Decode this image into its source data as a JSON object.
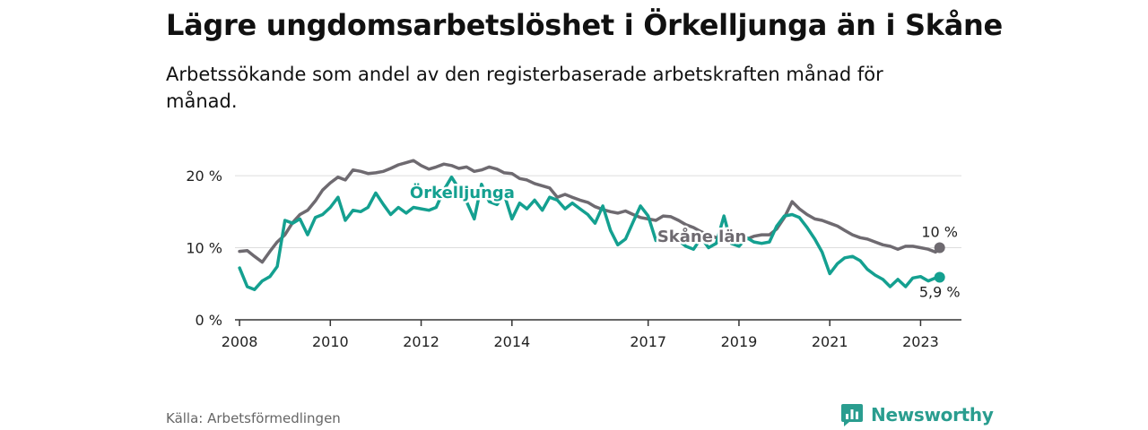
{
  "header": {
    "title": "Lägre ungdomsarbetslöshet i Örkelljunga än i Skåne",
    "subtitle": "Arbetssökande som andel av den registerbaserade arbetskraften månad för månad."
  },
  "footer": {
    "source": "Källa: Arbetsförmedlingen",
    "brand": "Newsworthy"
  },
  "colors": {
    "orkelljunga": "#14a090",
    "skane": "#6e6a70",
    "grid": "#dddddd",
    "axis": "#333333",
    "brand": "#2a9d8f"
  },
  "chart_data": {
    "type": "line",
    "title": "Lägre ungdomsarbetslöshet i Örkelljunga än i Skåne",
    "xlabel": "",
    "ylabel": "",
    "xlim": [
      2007.9,
      2023.9
    ],
    "ylim": [
      0,
      22
    ],
    "y_ticks": [
      0,
      10,
      20
    ],
    "y_tick_labels": [
      "0 %",
      "10 %",
      "20 %"
    ],
    "x_ticks": [
      2008,
      2010,
      2012,
      2014,
      2017,
      2019,
      2021,
      2023
    ],
    "x_tick_labels": [
      "2008",
      "2010",
      "2012",
      "2014",
      "2017",
      "2019",
      "2021",
      "2023"
    ],
    "grid": true,
    "series": [
      {
        "name": "Skåne län",
        "label": "Skåne län",
        "end_label": "10 %",
        "x": [
          2008.0,
          2008.17,
          2008.33,
          2008.5,
          2008.67,
          2008.83,
          2009.0,
          2009.17,
          2009.33,
          2009.5,
          2009.67,
          2009.83,
          2010.0,
          2010.17,
          2010.33,
          2010.5,
          2010.67,
          2010.83,
          2011.0,
          2011.17,
          2011.33,
          2011.5,
          2011.67,
          2011.83,
          2012.0,
          2012.17,
          2012.33,
          2012.5,
          2012.67,
          2012.83,
          2013.0,
          2013.17,
          2013.33,
          2013.5,
          2013.67,
          2013.83,
          2014.0,
          2014.17,
          2014.33,
          2014.5,
          2014.67,
          2014.83,
          2015.0,
          2015.17,
          2015.33,
          2015.5,
          2015.67,
          2015.83,
          2016.0,
          2016.17,
          2016.33,
          2016.5,
          2016.67,
          2016.83,
          2017.0,
          2017.17,
          2017.33,
          2017.5,
          2017.67,
          2017.83,
          2018.0,
          2018.17,
          2018.33,
          2018.5,
          2018.67,
          2018.83,
          2019.0,
          2019.17,
          2019.33,
          2019.5,
          2019.67,
          2019.83,
          2020.0,
          2020.17,
          2020.33,
          2020.5,
          2020.67,
          2020.83,
          2021.0,
          2021.17,
          2021.33,
          2021.5,
          2021.67,
          2021.83,
          2022.0,
          2022.17,
          2022.33,
          2022.5,
          2022.67,
          2022.83,
          2023.0,
          2023.17,
          2023.33,
          2023.42
        ],
        "values": [
          9.5,
          9.6,
          8.8,
          8.0,
          9.5,
          10.8,
          11.8,
          13.5,
          14.6,
          15.2,
          16.5,
          18.0,
          19.0,
          19.8,
          19.4,
          20.8,
          20.6,
          20.3,
          20.4,
          20.6,
          21.0,
          21.5,
          21.8,
          22.1,
          21.4,
          20.9,
          21.2,
          21.6,
          21.4,
          21.0,
          21.2,
          20.6,
          20.8,
          21.2,
          20.9,
          20.4,
          20.3,
          19.6,
          19.4,
          18.9,
          18.6,
          18.3,
          17.0,
          17.4,
          17.0,
          16.6,
          16.3,
          15.7,
          15.3,
          15.0,
          14.8,
          15.1,
          14.6,
          14.2,
          14.0,
          13.8,
          14.4,
          14.3,
          13.8,
          13.2,
          12.8,
          12.2,
          11.8,
          11.4,
          11.0,
          10.8,
          10.8,
          11.2,
          11.6,
          11.8,
          11.8,
          12.6,
          14.2,
          16.4,
          15.4,
          14.6,
          14.0,
          13.8,
          13.4,
          13.0,
          12.4,
          11.8,
          11.4,
          11.2,
          10.8,
          10.4,
          10.2,
          9.8,
          10.2,
          10.2,
          10.0,
          9.8,
          9.4,
          10.0
        ]
      },
      {
        "name": "Örkelljunga",
        "label": "Örkelljunga",
        "end_label": "5,9 %",
        "x": [
          2008.0,
          2008.17,
          2008.33,
          2008.5,
          2008.67,
          2008.83,
          2009.0,
          2009.17,
          2009.33,
          2009.5,
          2009.67,
          2009.83,
          2010.0,
          2010.17,
          2010.33,
          2010.5,
          2010.67,
          2010.83,
          2011.0,
          2011.17,
          2011.33,
          2011.5,
          2011.67,
          2011.83,
          2012.0,
          2012.17,
          2012.33,
          2012.5,
          2012.67,
          2012.83,
          2013.0,
          2013.17,
          2013.33,
          2013.5,
          2013.67,
          2013.83,
          2014.0,
          2014.17,
          2014.33,
          2014.5,
          2014.67,
          2014.83,
          2015.0,
          2015.17,
          2015.33,
          2015.5,
          2015.67,
          2015.83,
          2016.0,
          2016.17,
          2016.33,
          2016.5,
          2016.67,
          2016.83,
          2017.0,
          2017.17,
          2017.33,
          2017.5,
          2017.67,
          2017.83,
          2018.0,
          2018.17,
          2018.33,
          2018.5,
          2018.67,
          2018.83,
          2019.0,
          2019.17,
          2019.33,
          2019.5,
          2019.67,
          2019.83,
          2020.0,
          2020.17,
          2020.33,
          2020.5,
          2020.67,
          2020.83,
          2021.0,
          2021.17,
          2021.33,
          2021.5,
          2021.67,
          2021.83,
          2022.0,
          2022.17,
          2022.33,
          2022.5,
          2022.67,
          2022.83,
          2023.0,
          2023.17,
          2023.33,
          2023.42
        ],
        "values": [
          7.2,
          4.6,
          4.2,
          5.4,
          6.0,
          7.4,
          13.8,
          13.4,
          14.0,
          11.8,
          14.2,
          14.6,
          15.6,
          17.0,
          13.8,
          15.2,
          15.0,
          15.6,
          17.6,
          16.0,
          14.6,
          15.6,
          14.8,
          15.6,
          15.4,
          15.2,
          15.6,
          18.0,
          19.8,
          18.2,
          16.4,
          14.0,
          18.8,
          16.4,
          16.0,
          17.4,
          14.0,
          16.2,
          15.4,
          16.6,
          15.2,
          17.0,
          16.6,
          15.4,
          16.2,
          15.4,
          14.6,
          13.4,
          15.8,
          12.4,
          10.4,
          11.2,
          13.6,
          15.8,
          14.4,
          11.0,
          11.4,
          11.2,
          11.0,
          10.2,
          9.8,
          11.4,
          10.0,
          10.6,
          14.4,
          10.6,
          10.2,
          11.4,
          10.8,
          10.6,
          10.8,
          13.0,
          14.4,
          14.6,
          14.2,
          12.8,
          11.2,
          9.4,
          6.4,
          7.8,
          8.6,
          8.8,
          8.2,
          7.0,
          6.2,
          5.6,
          4.6,
          5.6,
          4.6,
          5.8,
          6.0,
          5.4,
          5.8,
          5.9
        ]
      }
    ]
  }
}
